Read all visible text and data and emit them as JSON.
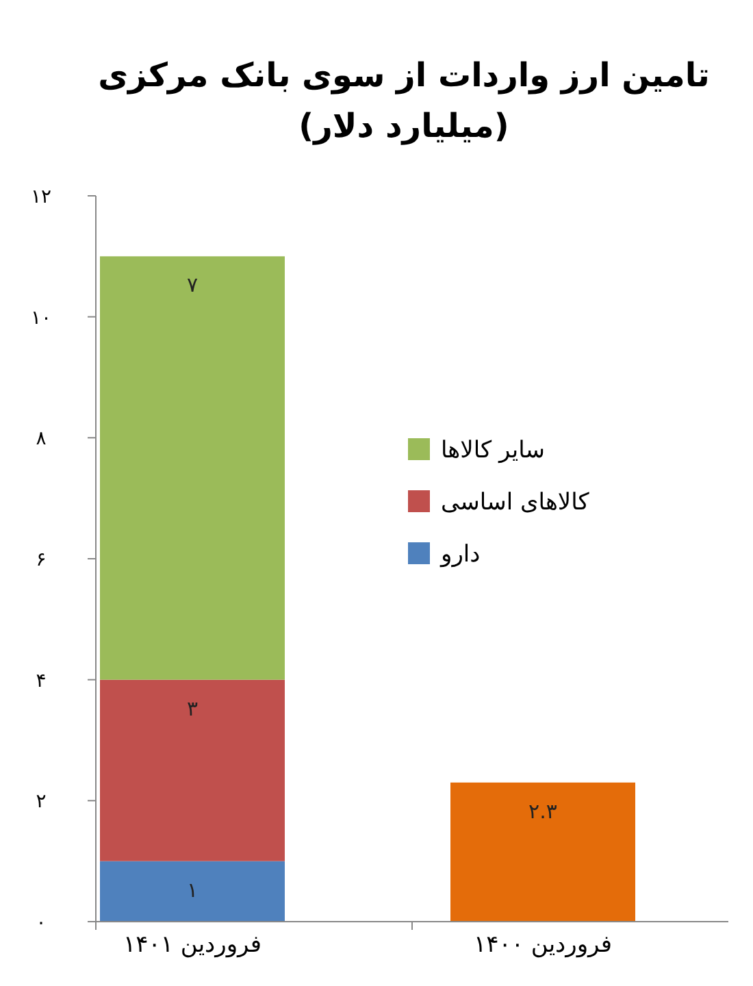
{
  "chart_data": {
    "type": "bar",
    "title": "تامین ارز واردات از سوی بانک مرکزی",
    "subtitle": "(میلیارد دلار)",
    "categories": [
      "فروردین ۱۴۰۱",
      "فروردین ۱۴۰۰"
    ],
    "stacked": true,
    "legend": "right",
    "grid": false,
    "ylim": [
      0,
      12
    ],
    "yticks": [
      {
        "value": 0,
        "label": "۰"
      },
      {
        "value": 2,
        "label": "۲"
      },
      {
        "value": 4,
        "label": "۴"
      },
      {
        "value": 6,
        "label": "۶"
      },
      {
        "value": 8,
        "label": "۸"
      },
      {
        "value": 10,
        "label": "۱۰"
      },
      {
        "value": 12,
        "label": "۱۲"
      }
    ],
    "series": [
      {
        "name": "دارو",
        "color": "#4f81bd",
        "values": [
          1,
          null
        ],
        "value_labels": [
          "۱",
          null
        ]
      },
      {
        "name": "کالاهای اساسی",
        "color": "#c0504d",
        "values": [
          3,
          null
        ],
        "value_labels": [
          "۳",
          null
        ]
      },
      {
        "name": "سایر کالاها",
        "color": "#9bbb59",
        "values": [
          7,
          null
        ],
        "value_labels": [
          "۷",
          null
        ]
      },
      {
        "color": "#e46c0a",
        "values": [
          null,
          2.3
        ],
        "value_labels": [
          null,
          "۲.۳"
        ]
      }
    ]
  }
}
